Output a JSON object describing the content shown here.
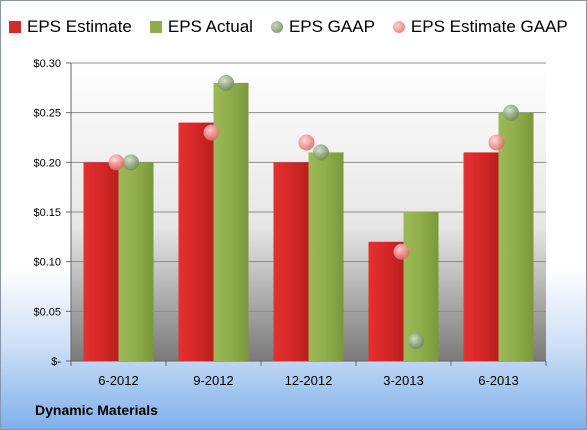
{
  "legend": {
    "items": [
      {
        "label": "EPS Estimate",
        "color": "#d42a2a",
        "shape": "square"
      },
      {
        "label": "EPS Actual",
        "color": "#8fae4a",
        "shape": "square"
      },
      {
        "label": "EPS GAAP",
        "color": "#8aa078",
        "shape": "circle"
      },
      {
        "label": "EPS Estimate GAAP",
        "color": "#f09090",
        "shape": "circle"
      }
    ]
  },
  "company": "Dynamic Materials",
  "chart_data": {
    "type": "bar",
    "categories": [
      "6-2012",
      "9-2012",
      "12-2012",
      "3-2013",
      "6-2013"
    ],
    "series": [
      {
        "name": "EPS Estimate",
        "type": "bar",
        "color": "#d42a2a",
        "values": [
          0.2,
          0.24,
          0.2,
          0.12,
          0.21
        ]
      },
      {
        "name": "EPS Actual",
        "type": "bar",
        "color": "#8fae4a",
        "values": [
          0.2,
          0.28,
          0.21,
          0.15,
          0.25
        ]
      },
      {
        "name": "EPS GAAP",
        "type": "scatter",
        "color": "#8aa078",
        "values": [
          0.2,
          0.28,
          0.21,
          0.02,
          0.25
        ]
      },
      {
        "name": "EPS Estimate GAAP",
        "type": "scatter",
        "color": "#f09090",
        "values": [
          0.2,
          0.23,
          0.22,
          0.11,
          0.22
        ]
      }
    ],
    "yticks": [
      "$-",
      "$0.05",
      "$0.10",
      "$0.15",
      "$0.20",
      "$0.25",
      "$0.30"
    ],
    "ylim": [
      0,
      0.3
    ],
    "grid": true,
    "legend_position": "top"
  }
}
